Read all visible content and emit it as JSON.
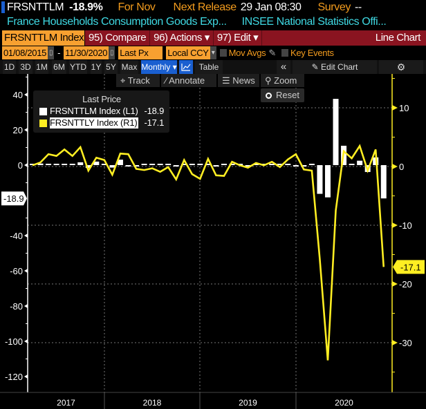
{
  "header": {
    "ticker": "FRSNTTLM",
    "change": "-18.9%",
    "period": "For Nov",
    "next_release_label": "Next Release",
    "next_release_value": "29 Jan 08:30",
    "survey_label": "Survey",
    "survey_value": "--",
    "description": "France Households Consumption Goods Exp...",
    "source": "INSEE National Statistics Offi..."
  },
  "command_bar": {
    "security": "FRSNTTLM Index",
    "compare": "95) Compare",
    "actions": "96) Actions ▾",
    "edit": "97) Edit ▾",
    "chart_type": "Line Chart"
  },
  "settings": {
    "start_date": "01/08/2015",
    "dash": "-",
    "end_date": "11/30/2020",
    "field": "Last Px",
    "currency": "Local CCY",
    "mov_avgs": "Mov Avgs",
    "key_events": "Key Events"
  },
  "periods": [
    "1D",
    "3D",
    "1M",
    "6M",
    "YTD",
    "1Y",
    "5Y",
    "Max"
  ],
  "toolbar": {
    "frequency": "Monthly ▾",
    "table": "Table",
    "collapse": "«",
    "edit_chart": "Edit Chart",
    "track": "Track",
    "annotate": "Annotate",
    "news": "News",
    "zoom": "Zoom",
    "reset": "Reset"
  },
  "legend": {
    "title": "Last Price",
    "items": [
      {
        "label": "FRSNTTLM Index  (L1)",
        "value": "-18.9",
        "color": "#ffffff"
      },
      {
        "label": "FRSNTTLY Index  (R1)",
        "value": "-17.1",
        "color": "#ffee22"
      }
    ]
  },
  "colors": {
    "accent": "#f7a030",
    "command_bar": "#8a1420",
    "yellow_series": "#ffee22",
    "active_button": "#1a5fd0",
    "description": "#3fd9e3"
  },
  "chart_data": {
    "type": "bar+line",
    "frequency": "monthly",
    "x": [
      "2017-03",
      "2017-04",
      "2017-05",
      "2017-06",
      "2017-07",
      "2017-08",
      "2017-09",
      "2017-10",
      "2017-11",
      "2017-12",
      "2018-01",
      "2018-02",
      "2018-03",
      "2018-04",
      "2018-05",
      "2018-06",
      "2018-07",
      "2018-08",
      "2018-09",
      "2018-10",
      "2018-11",
      "2018-12",
      "2019-01",
      "2019-02",
      "2019-03",
      "2019-04",
      "2019-05",
      "2019-06",
      "2019-07",
      "2019-08",
      "2019-09",
      "2019-10",
      "2019-11",
      "2019-12",
      "2020-01",
      "2020-02",
      "2020-03",
      "2020-04",
      "2020-05",
      "2020-06",
      "2020-07",
      "2020-08",
      "2020-09",
      "2020-10",
      "2020-11"
    ],
    "x_tick_labels": [
      "2017",
      "2018",
      "2019",
      "2020"
    ],
    "series": [
      {
        "name": "FRSNTTLM Index",
        "axis": "left",
        "type": "bar",
        "color": "#ffffff",
        "last": "-18.9",
        "values": [
          0.5,
          0.9,
          0.5,
          0.3,
          0.3,
          0.3,
          1.6,
          -1.6,
          2.0,
          0.3,
          -1.4,
          3.1,
          -0.3,
          -0.8,
          0.5,
          0.3,
          0.3,
          0.5,
          -0.3,
          0.5,
          0.3,
          0.8,
          0.5,
          -0.3,
          0.3,
          0.5,
          0.3,
          -0.3,
          0.5,
          0.3,
          0.5,
          0.3,
          0.3,
          -0.3,
          -0.3,
          0.3,
          -16.3,
          -18.3,
          37.6,
          11.0,
          0.3,
          2.5,
          -3.9,
          4.4,
          -18.9
        ]
      },
      {
        "name": "FRSNTTLY Index",
        "axis": "right",
        "type": "line",
        "color": "#ffee22",
        "last": "-17.1",
        "values": [
          0.2,
          0.7,
          2.1,
          1.8,
          2.9,
          1.8,
          3.3,
          -0.7,
          1.5,
          1.1,
          -1.4,
          2.2,
          2.1,
          -0.4,
          -0.6,
          -0.3,
          -0.9,
          -0.1,
          -2.2,
          1.1,
          -1.3,
          -2.1,
          1.3,
          -1.5,
          -1.6,
          0.8,
          0.2,
          -0.2,
          0.6,
          0.2,
          0.8,
          -0.1,
          1.2,
          2.1,
          -0.5,
          -0.7,
          -15.8,
          -33.0,
          -7.5,
          2.6,
          1.4,
          3.5,
          -0.7,
          2.9,
          -17.1
        ]
      }
    ],
    "left_axis": {
      "ticks": [
        40,
        20,
        0,
        -20,
        -40,
        -60,
        -80,
        -100,
        -120
      ],
      "range": [
        -131,
        52
      ]
    },
    "right_axis": {
      "ticks": [
        10,
        0,
        -10,
        -20,
        -30
      ],
      "range": [
        -38.6,
        15.6
      ]
    },
    "grid": true,
    "legend_position": "top-left"
  }
}
